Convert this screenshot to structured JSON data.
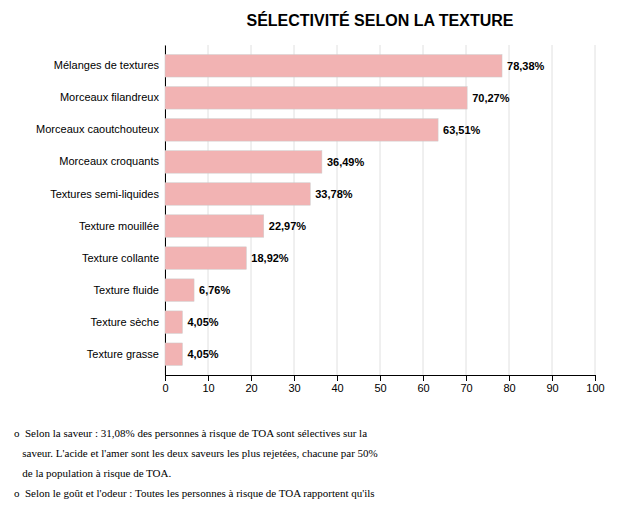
{
  "chart_data": {
    "type": "bar",
    "orientation": "horizontal",
    "title": "SÉLECTIVITÉ SELON LA TEXTURE",
    "categories": [
      "Texture grasse",
      "Texture sèche",
      "Texture fluide",
      "Texture collante",
      "Texture mouillée",
      "Textures semi-liquides",
      "Morceaux croquants",
      "Morceaux caoutchouteux",
      "Morceaux filandreux",
      "Mélanges de textures"
    ],
    "values": [
      4.05,
      4.05,
      6.76,
      18.92,
      22.97,
      33.78,
      36.49,
      63.51,
      70.27,
      78.38
    ],
    "value_labels": [
      "4,05%",
      "4,05%",
      "6,76%",
      "18,92%",
      "22,97%",
      "33,78%",
      "36,49%",
      "63,51%",
      "70,27%",
      "78,38%"
    ],
    "data_labels": true,
    "color": "#f2b3b3",
    "xlim": [
      0,
      100
    ],
    "xticks": [
      0,
      10,
      20,
      30,
      40,
      50,
      60,
      70,
      80,
      90,
      100
    ],
    "grid": true,
    "annotations": [
      "o  Selon la saveur : 31,08% des personnes à risque de TOA sont sélectives sur la",
      "   saveur. L'acide et l'amer sont les deux saveurs les plus rejetées, chacune par 50%",
      "   de la population à risque de TOA.",
      "o  Selon le goût et l'odeur : Toutes les personnes à risque de TOA rapportent qu'ils"
    ]
  }
}
